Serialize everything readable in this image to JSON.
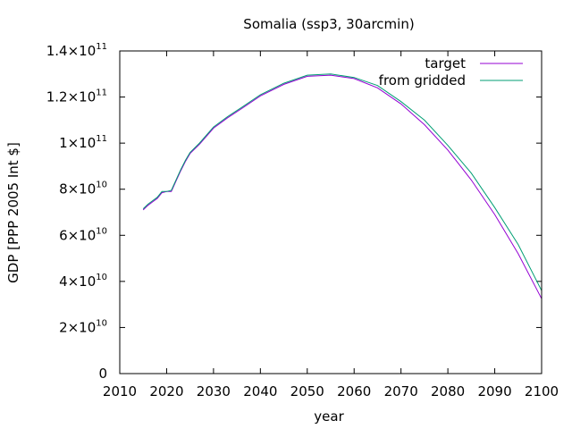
{
  "chart_data": {
    "type": "line",
    "title": "Somalia (ssp3, 30arcmin)",
    "xlabel": "year",
    "ylabel": "GDP [PPP 2005 Int $]",
    "xlim": [
      2010,
      2100
    ],
    "ylim": [
      0,
      140000000000
    ],
    "x_ticks": [
      {
        "value": 2010,
        "label": "2010"
      },
      {
        "value": 2020,
        "label": "2020"
      },
      {
        "value": 2030,
        "label": "2030"
      },
      {
        "value": 2040,
        "label": "2040"
      },
      {
        "value": 2050,
        "label": "2050"
      },
      {
        "value": 2060,
        "label": "2060"
      },
      {
        "value": 2070,
        "label": "2070"
      },
      {
        "value": 2080,
        "label": "2080"
      },
      {
        "value": 2090,
        "label": "2090"
      },
      {
        "value": 2100,
        "label": "2100"
      }
    ],
    "y_ticks": [
      {
        "value": 0,
        "label": "0",
        "exp": ""
      },
      {
        "value": 20000000000,
        "label": "2×10",
        "exp": "10"
      },
      {
        "value": 40000000000,
        "label": "4×10",
        "exp": "10"
      },
      {
        "value": 60000000000,
        "label": "6×10",
        "exp": "10"
      },
      {
        "value": 80000000000,
        "label": "8×10",
        "exp": "10"
      },
      {
        "value": 100000000000,
        "label": "1×10",
        "exp": "11"
      },
      {
        "value": 120000000000,
        "label": "1.2×10",
        "exp": "11"
      },
      {
        "value": 140000000000,
        "label": "1.4×10",
        "exp": "11"
      }
    ],
    "grid": false,
    "legend_position": "top-right",
    "series": [
      {
        "name": "target",
        "color": "#9400d3",
        "points": [
          [
            2015,
            71000000000
          ],
          [
            2016,
            73000000000
          ],
          [
            2017,
            74500000000
          ],
          [
            2018,
            76000000000
          ],
          [
            2019,
            78500000000
          ],
          [
            2020,
            79000000000
          ],
          [
            2021,
            79000000000
          ],
          [
            2022,
            83500000000
          ],
          [
            2023,
            88000000000
          ],
          [
            2024,
            92000000000
          ],
          [
            2025,
            95500000000
          ],
          [
            2027,
            99500000000
          ],
          [
            2030,
            106500000000
          ],
          [
            2033,
            111000000000
          ],
          [
            2036,
            115000000000
          ],
          [
            2040,
            120500000000
          ],
          [
            2045,
            125500000000
          ],
          [
            2050,
            129000000000
          ],
          [
            2055,
            129500000000
          ],
          [
            2060,
            128000000000
          ],
          [
            2065,
            124000000000
          ],
          [
            2070,
            117000000000
          ],
          [
            2075,
            108000000000
          ],
          [
            2080,
            97000000000
          ],
          [
            2085,
            84000000000
          ],
          [
            2090,
            69000000000
          ],
          [
            2095,
            52000000000
          ],
          [
            2100,
            32500000000
          ]
        ]
      },
      {
        "name": "from gridded",
        "color": "#009e73",
        "points": [
          [
            2015,
            71500000000
          ],
          [
            2016,
            73500000000
          ],
          [
            2017,
            75000000000
          ],
          [
            2018,
            76500000000
          ],
          [
            2019,
            79000000000
          ],
          [
            2020,
            79000000000
          ],
          [
            2021,
            79500000000
          ],
          [
            2022,
            84000000000
          ],
          [
            2023,
            88500000000
          ],
          [
            2024,
            92500000000
          ],
          [
            2025,
            96000000000
          ],
          [
            2027,
            100000000000
          ],
          [
            2030,
            107000000000
          ],
          [
            2033,
            111500000000
          ],
          [
            2036,
            115500000000
          ],
          [
            2040,
            121000000000
          ],
          [
            2045,
            126000000000
          ],
          [
            2050,
            129500000000
          ],
          [
            2055,
            130000000000
          ],
          [
            2060,
            128500000000
          ],
          [
            2065,
            125000000000
          ],
          [
            2070,
            118000000000
          ],
          [
            2075,
            110000000000
          ],
          [
            2080,
            99000000000
          ],
          [
            2085,
            87000000000
          ],
          [
            2090,
            72000000000
          ],
          [
            2095,
            56000000000
          ],
          [
            2100,
            36000000000
          ]
        ]
      }
    ]
  }
}
